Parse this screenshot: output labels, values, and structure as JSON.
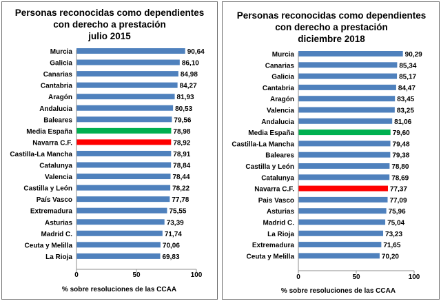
{
  "chart_data": [
    {
      "type": "bar",
      "orientation": "horizontal",
      "title_lines": [
        "Personas reconocidas como dependientes",
        "con derecho a prestación",
        "julio  2015"
      ],
      "xlabel": "% sobre resoluciones  de las CCAA",
      "xlim": [
        0,
        100
      ],
      "ticks": [
        "0",
        "50",
        "100"
      ],
      "tick_values": [
        0,
        50,
        100
      ],
      "grid": false,
      "colors": {
        "default": "#4f81bd",
        "media": "#00b050",
        "navarra": "#ff0000"
      },
      "categories": [
        "Murcia",
        "Galicia",
        "Canarias",
        "Cantabria",
        "Aragón",
        "Andalucia",
        "Baleares",
        "Media España",
        "Navarra C.F.",
        "Castilla-La Mancha",
        "Catalunya",
        "Valencia",
        "Castilla y León",
        "País Vasco",
        "Extremadura",
        "Asturias",
        "Madrid  C.",
        "Ceuta y Melilla",
        "La Rioja"
      ],
      "values": [
        90.64,
        86.1,
        84.98,
        84.27,
        81.93,
        80.53,
        79.56,
        78.98,
        78.92,
        78.91,
        78.84,
        78.44,
        78.22,
        77.78,
        75.55,
        73.39,
        71.74,
        70.06,
        69.83
      ],
      "value_labels": [
        "90,64",
        "86,10",
        "84,98",
        "84,27",
        "81,93",
        "80,53",
        "79,56",
        "78,98",
        "78,92",
        "78,91",
        "78,84",
        "78,44",
        "78,22",
        "77,78",
        "75,55",
        "73,39",
        "71,74",
        "70,06",
        "69,83"
      ],
      "highlights": {
        "Media España": "media",
        "Navarra C.F.": "navarra"
      }
    },
    {
      "type": "bar",
      "orientation": "horizontal",
      "title_lines": [
        "Personas reconocidas como dependientes",
        "con derecho a prestación",
        "diciembre 2018"
      ],
      "xlabel": "% sobre resoluciones  de las CCAA",
      "xlim": [
        0,
        100
      ],
      "ticks": [
        "0",
        "50",
        "100"
      ],
      "tick_values": [
        0,
        50,
        100
      ],
      "grid": false,
      "colors": {
        "default": "#4f81bd",
        "media": "#00b050",
        "navarra": "#ff0000"
      },
      "categories": [
        "Murcia",
        "Canarias",
        "Galicia",
        "Cantabria",
        "Aragón",
        "Valencia",
        "Andalucia",
        "Media España",
        "Castilla-La Mancha",
        "Baleares",
        "Castilla y León",
        "Catalunya",
        "Navarra C.F.",
        "Pais Vasco",
        "Asturias",
        "Madrid  C.",
        "La Rioja",
        "Extremadura",
        "Ceuta y Melilla"
      ],
      "values": [
        90.29,
        85.34,
        85.17,
        84.47,
        83.45,
        83.25,
        81.06,
        79.6,
        79.48,
        79.38,
        78.8,
        78.69,
        77.37,
        77.09,
        75.96,
        75.04,
        73.23,
        71.65,
        70.2
      ],
      "value_labels": [
        "90,29",
        "85,34",
        "85,17",
        "84,47",
        "83,45",
        "83,25",
        "81,06",
        "79,60",
        "79,48",
        "79,38",
        "78,80",
        "78,69",
        "77,37",
        "77,09",
        "75,96",
        "75,04",
        "73,23",
        "71,65",
        "70,20"
      ],
      "highlights": {
        "Media España": "media",
        "Navarra C.F.": "navarra"
      }
    }
  ]
}
